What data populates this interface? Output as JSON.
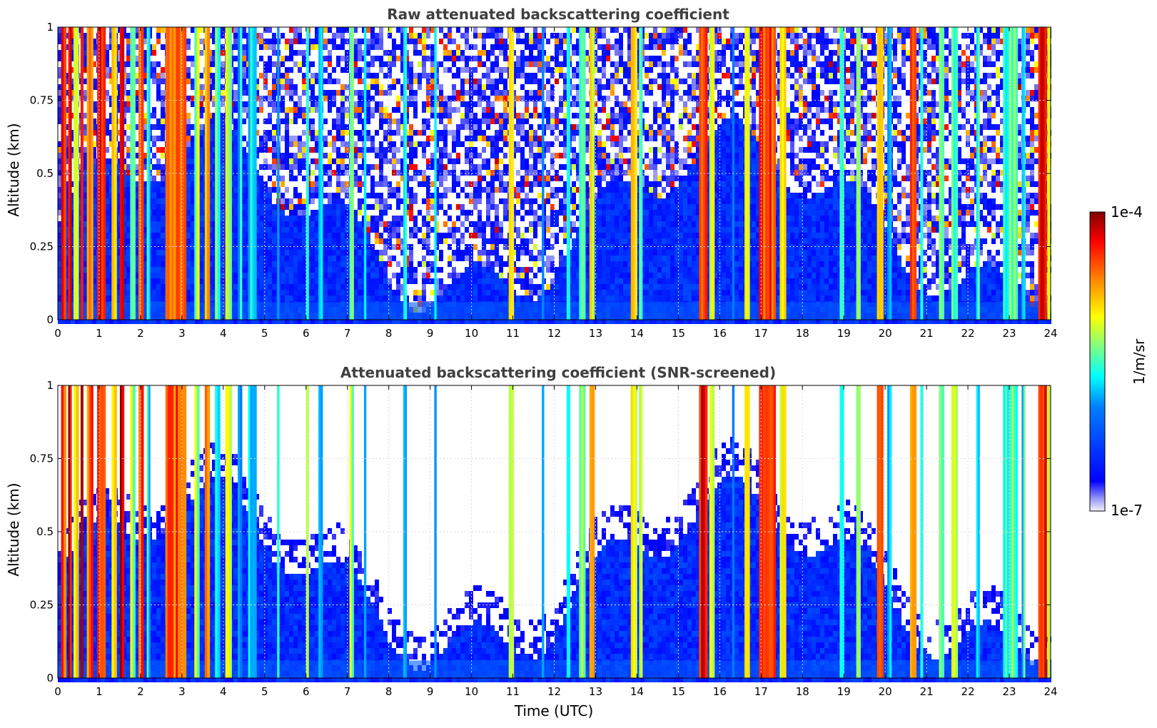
{
  "chart_data": [
    {
      "type": "heatmap",
      "title": "Raw attenuated backscattering coefficient",
      "xlabel": "",
      "ylabel": "Altitude (km)",
      "xlim": [
        0,
        24
      ],
      "ylim": [
        0,
        1
      ],
      "xticks": [
        "0",
        "1",
        "2",
        "3",
        "4",
        "5",
        "6",
        "7",
        "8",
        "9",
        "10",
        "11",
        "12",
        "13",
        "14",
        "15",
        "16",
        "17",
        "18",
        "19",
        "20",
        "21",
        "22",
        "23",
        "24"
      ],
      "yticks": [
        "0",
        "0.25",
        "0.5",
        "0.75",
        "1"
      ],
      "grid": true,
      "screened": false
    },
    {
      "type": "heatmap",
      "title": "Attenuated backscattering coefficient (SNR-screened)",
      "xlabel": "Time (UTC)",
      "ylabel": "Altitude (km)",
      "xlim": [
        0,
        24
      ],
      "ylim": [
        0,
        1
      ],
      "xticks": [
        "0",
        "1",
        "2",
        "3",
        "4",
        "5",
        "6",
        "7",
        "8",
        "9",
        "10",
        "11",
        "12",
        "13",
        "14",
        "15",
        "16",
        "17",
        "18",
        "19",
        "20",
        "21",
        "22",
        "23",
        "24"
      ],
      "yticks": [
        "0",
        "0.25",
        "0.5",
        "0.75",
        "1"
      ],
      "grid": true,
      "screened": true
    }
  ],
  "colorbar": {
    "label": "1/m/sr",
    "max_label": "1e-4",
    "min_label": "1e-7",
    "colormap": "jet",
    "scale": "log"
  },
  "bands": [
    {
      "x": 0.08,
      "w": 0.12,
      "level": 0.85
    },
    {
      "x": 0.25,
      "w": 0.08,
      "level": 0.92
    },
    {
      "x": 0.38,
      "w": 0.12,
      "level": 0.7
    },
    {
      "x": 0.55,
      "w": 0.06,
      "level": 0.95
    },
    {
      "x": 0.7,
      "w": 0.15,
      "level": 0.82
    },
    {
      "x": 0.95,
      "w": 0.2,
      "level": 0.9
    },
    {
      "x": 1.3,
      "w": 0.12,
      "level": 0.75
    },
    {
      "x": 1.5,
      "w": 0.1,
      "level": 0.95
    },
    {
      "x": 1.75,
      "w": 0.12,
      "level": 0.6
    },
    {
      "x": 1.95,
      "w": 0.12,
      "level": 0.85
    },
    {
      "x": 2.15,
      "w": 0.08,
      "level": 0.45
    },
    {
      "x": 2.6,
      "w": 0.5,
      "level": 0.82
    },
    {
      "x": 3.3,
      "w": 0.12,
      "level": 0.58
    },
    {
      "x": 3.55,
      "w": 0.12,
      "level": 0.75
    },
    {
      "x": 3.8,
      "w": 0.12,
      "level": 0.5
    },
    {
      "x": 4.05,
      "w": 0.15,
      "level": 0.62
    },
    {
      "x": 4.35,
      "w": 0.1,
      "level": 0.4
    },
    {
      "x": 4.6,
      "w": 0.2,
      "level": 0.45
    },
    {
      "x": 5.3,
      "w": 0.05,
      "level": 0.4
    },
    {
      "x": 6.0,
      "w": 0.06,
      "level": 0.55
    },
    {
      "x": 6.3,
      "w": 0.1,
      "level": 0.45
    },
    {
      "x": 7.05,
      "w": 0.1,
      "level": 0.58
    },
    {
      "x": 7.4,
      "w": 0.05,
      "level": 0.4
    },
    {
      "x": 8.35,
      "w": 0.08,
      "level": 0.4
    },
    {
      "x": 9.1,
      "w": 0.05,
      "level": 0.38
    },
    {
      "x": 10.9,
      "w": 0.12,
      "level": 0.62
    },
    {
      "x": 11.7,
      "w": 0.05,
      "level": 0.4
    },
    {
      "x": 12.3,
      "w": 0.08,
      "level": 0.45
    },
    {
      "x": 12.6,
      "w": 0.15,
      "level": 0.55
    },
    {
      "x": 12.85,
      "w": 0.12,
      "level": 0.68
    },
    {
      "x": 13.85,
      "w": 0.15,
      "level": 0.7
    },
    {
      "x": 14.05,
      "w": 0.08,
      "level": 0.55
    },
    {
      "x": 15.5,
      "w": 0.2,
      "level": 0.88
    },
    {
      "x": 15.75,
      "w": 0.12,
      "level": 0.68
    },
    {
      "x": 16.3,
      "w": 0.05,
      "level": 0.4
    },
    {
      "x": 16.6,
      "w": 0.12,
      "level": 0.6
    },
    {
      "x": 16.95,
      "w": 0.4,
      "level": 0.85
    },
    {
      "x": 17.45,
      "w": 0.15,
      "level": 0.62
    },
    {
      "x": 18.9,
      "w": 0.1,
      "level": 0.45
    },
    {
      "x": 19.3,
      "w": 0.1,
      "level": 0.55
    },
    {
      "x": 19.8,
      "w": 0.15,
      "level": 0.75
    },
    {
      "x": 20.05,
      "w": 0.1,
      "level": 0.45
    },
    {
      "x": 20.6,
      "w": 0.15,
      "level": 0.8
    },
    {
      "x": 20.85,
      "w": 0.06,
      "level": 0.42
    },
    {
      "x": 21.3,
      "w": 0.12,
      "level": 0.58
    },
    {
      "x": 21.6,
      "w": 0.15,
      "level": 0.55
    },
    {
      "x": 22.2,
      "w": 0.08,
      "level": 0.45
    },
    {
      "x": 22.85,
      "w": 0.35,
      "level": 0.52
    },
    {
      "x": 23.3,
      "w": 0.08,
      "level": 0.45
    },
    {
      "x": 23.7,
      "w": 0.2,
      "level": 0.88
    },
    {
      "x": 23.92,
      "w": 0.08,
      "level": 0.6
    }
  ]
}
